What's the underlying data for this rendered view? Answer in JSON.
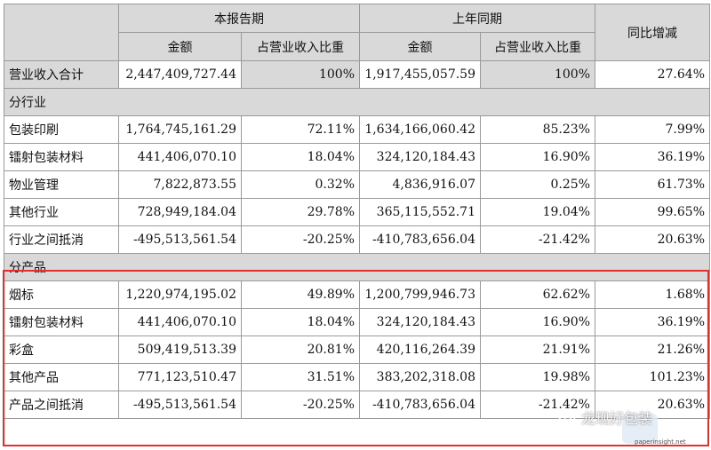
{
  "table": {
    "period_current": "本报告期",
    "period_prior": "上年同期",
    "yoy_header": "同比增减",
    "amount_header": "金额",
    "share_header": "占营业收入比重",
    "total_row": {
      "label": "营业收入合计",
      "cur_amount": "2,447,409,727.44",
      "cur_share": "100%",
      "prev_amount": "1,917,455,057.59",
      "prev_share": "100%",
      "yoy": "27.64%"
    },
    "section_industry": "分行业",
    "industry_rows": [
      {
        "label": "包装印刷",
        "cur_amount": "1,764,745,161.29",
        "cur_share": "72.11%",
        "prev_amount": "1,634,166,060.42",
        "prev_share": "85.23%",
        "yoy": "7.99%"
      },
      {
        "label": "镭射包装材料",
        "cur_amount": "441,406,070.10",
        "cur_share": "18.04%",
        "prev_amount": "324,120,184.43",
        "prev_share": "16.90%",
        "yoy": "36.19%"
      },
      {
        "label": "物业管理",
        "cur_amount": "7,822,873.55",
        "cur_share": "0.32%",
        "prev_amount": "4,836,916.07",
        "prev_share": "0.25%",
        "yoy": "61.73%"
      },
      {
        "label": "其他行业",
        "cur_amount": "728,949,184.04",
        "cur_share": "29.78%",
        "prev_amount": "365,115,552.71",
        "prev_share": "19.04%",
        "yoy": "99.65%"
      },
      {
        "label": "行业之间抵消",
        "cur_amount": "-495,513,561.54",
        "cur_share": "-20.25%",
        "prev_amount": "-410,783,656.04",
        "prev_share": "-21.42%",
        "yoy": "20.63%"
      }
    ],
    "section_product": "分产品",
    "product_rows": [
      {
        "label": "烟标",
        "cur_amount": "1,220,974,195.02",
        "cur_share": "49.89%",
        "prev_amount": "1,200,799,946.73",
        "prev_share": "62.62%",
        "yoy": "1.68%"
      },
      {
        "label": "镭射包装材料",
        "cur_amount": "441,406,070.10",
        "cur_share": "18.04%",
        "prev_amount": "324,120,184.43",
        "prev_share": "16.90%",
        "yoy": "36.19%"
      },
      {
        "label": "彩盒",
        "cur_amount": "509,419,513.39",
        "cur_share": "20.81%",
        "prev_amount": "420,116,264.39",
        "prev_share": "21.91%",
        "yoy": "21.26%"
      },
      {
        "label": "其他产品",
        "cur_amount": "771,123,510.47",
        "cur_share": "31.51%",
        "prev_amount": "383,202,318.08",
        "prev_share": "19.98%",
        "yoy": "101.23%"
      },
      {
        "label": "产品之间抵消",
        "cur_amount": "-495,513,561.54",
        "cur_share": "-20.25%",
        "prev_amount": "-410,783,656.04",
        "prev_share": "-21.42%",
        "yoy": "20.63%"
      }
    ]
  },
  "watermark": {
    "text": "龙现好包装",
    "url": "paperinsight.net"
  },
  "colors": {
    "header_bg": "#d9d9d9",
    "border": "#9a9a9a",
    "highlight": "#e2302f"
  },
  "icons": {
    "watermark_logo": "wechat-icon"
  }
}
